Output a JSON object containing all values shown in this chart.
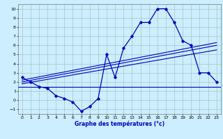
{
  "title": "Graphe des températures (°c)",
  "background_color": "#cceeff",
  "grid_color": "#aacccc",
  "line_color": "#0000bb",
  "xlim": [
    -0.5,
    23.5
  ],
  "ylim": [
    -1.5,
    10.5
  ],
  "xticks": [
    0,
    1,
    2,
    3,
    4,
    5,
    6,
    7,
    8,
    9,
    10,
    11,
    12,
    13,
    14,
    15,
    16,
    17,
    18,
    19,
    20,
    21,
    22,
    23
  ],
  "yticks": [
    -1,
    0,
    1,
    2,
    3,
    4,
    5,
    6,
    7,
    8,
    9,
    10
  ],
  "temp_x": [
    0,
    1,
    2,
    3,
    4,
    5,
    6,
    7,
    8,
    9,
    10,
    11,
    12,
    13,
    14,
    15,
    16,
    17,
    18,
    19,
    20,
    21,
    22,
    23
  ],
  "temp_y": [
    2.5,
    2.0,
    1.5,
    1.3,
    0.5,
    0.2,
    -0.2,
    -1.2,
    -0.7,
    0.2,
    5.0,
    2.5,
    5.7,
    7.0,
    8.5,
    8.5,
    10.0,
    10.0,
    8.5,
    6.5,
    6.0,
    3.0,
    3.0,
    2.0
  ],
  "flat_y": 1.5,
  "trend1_x0": 0,
  "trend1_x1": 23,
  "trend1_y0": 1.8,
  "trend1_y1": 5.5,
  "trend2_x0": 0,
  "trend2_x1": 23,
  "trend2_y0": 2.0,
  "trend2_y1": 6.0,
  "trend3_x0": 0,
  "trend3_x1": 23,
  "trend3_y0": 2.2,
  "trend3_y1": 6.3
}
